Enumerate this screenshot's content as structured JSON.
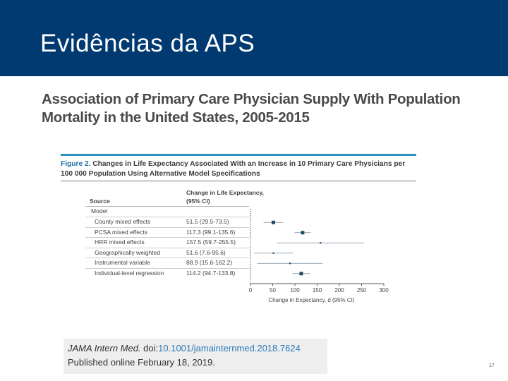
{
  "header": {
    "title": "Evidências da APS",
    "background_color": "#003a70"
  },
  "article": {
    "title": "Association of Primary Care Physician Supply With Population Mortality in the United States, 2005-2015"
  },
  "figure": {
    "caption_lead": "Figure 2.",
    "caption_text": "Changes in Life Expectancy Associated With an Increase in 10 Primary Care Physicians per 100 000 Population Using Alternative Model Specifications",
    "col_source": "Source",
    "col_change": "Change in Life Expectancy, (95% CI)",
    "group_label": "Model",
    "rows": [
      {
        "name": "County mixed effects",
        "value": "51.5 (29.5-73.5)"
      },
      {
        "name": "PCSA mixed effects",
        "value": "117.3 (99.1-135.6)"
      },
      {
        "name": "HRR mixed effects",
        "value": "157.5 (59.7-255.5)"
      },
      {
        "name": "Geographically weighted",
        "value": "51.6 (7.6-95.6)"
      },
      {
        "name": "Instrumental variable",
        "value": "88.9 (15.6-162.2)"
      },
      {
        "name": "Individual-level regression",
        "value": "114.2 (94.7-133.8)"
      }
    ],
    "x_label": "Change in Expectancy, d (95% CI)",
    "accent_color": "#2f8fbf"
  },
  "chart_data": {
    "type": "scatter",
    "categories": [
      "County mixed effects",
      "PCSA mixed effects",
      "HRR mixed effects",
      "Geographically weighted",
      "Instrumental variable",
      "Individual-level regression"
    ],
    "estimates": [
      51.5,
      117.3,
      157.5,
      51.6,
      88.9,
      114.2
    ],
    "ci_low": [
      29.5,
      99.1,
      59.7,
      7.6,
      15.6,
      94.7
    ],
    "ci_high": [
      73.5,
      135.6,
      255.5,
      95.6,
      162.2,
      133.8
    ],
    "weight": [
      "large",
      "large",
      "small",
      "small",
      "small",
      "large"
    ],
    "xlim": [
      0,
      300
    ],
    "xticks": [
      0,
      50,
      100,
      150,
      200,
      250,
      300
    ],
    "xlabel": "Change in Expectancy, d (95% CI)",
    "ylabel": "",
    "title": "",
    "grid": false,
    "marker_color": "#1f4e6b"
  },
  "citation": {
    "journal": "JAMA Intern Med.",
    "doi_prefix": " doi:",
    "doi": "10.1001/jamainternmed.2018.7624",
    "published": "Published online February 18, 2019."
  },
  "page": {
    "number": "17"
  }
}
